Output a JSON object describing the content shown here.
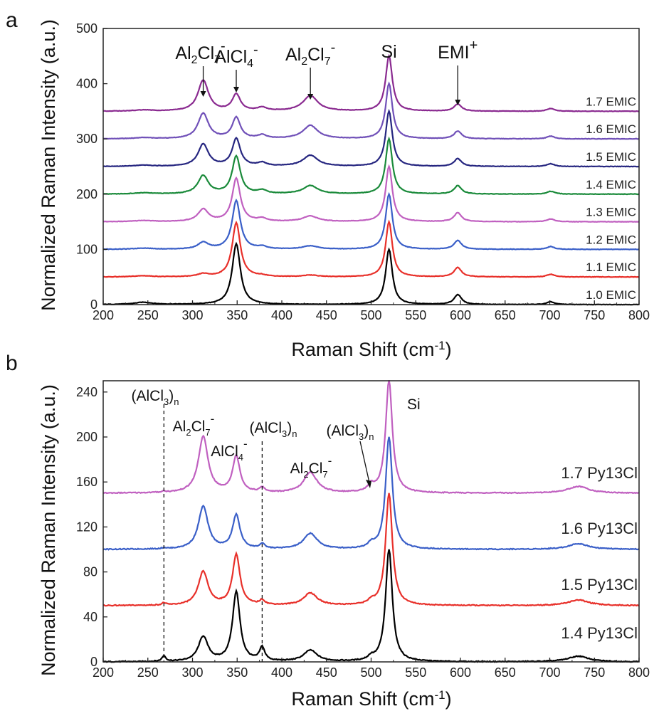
{
  "chart_data": [
    {
      "panel": "a",
      "type": "line",
      "xlabel": "Raman Shift (cm⁻¹)",
      "ylabel": "Normalized Raman Intensity (a.u.)",
      "xlim": [
        200,
        800
      ],
      "ylim": [
        0,
        500
      ],
      "xticks": [
        200,
        250,
        300,
        350,
        400,
        450,
        500,
        550,
        600,
        650,
        700,
        750,
        800
      ],
      "yticks": [
        0,
        100,
        200,
        300,
        400,
        500
      ],
      "peak_positions": [
        245,
        312,
        349,
        378,
        432,
        520,
        597,
        701
      ],
      "series": [
        {
          "name": "1.0 EMIC",
          "offset": 0,
          "color": "#000000",
          "peak_heights": [
            4,
            0,
            110,
            0,
            0,
            100,
            18,
            5
          ]
        },
        {
          "name": "1.1 EMIC",
          "offset": 50,
          "color": "#e8302a",
          "peak_heights": [
            2,
            5,
            98,
            2,
            3,
            100,
            17,
            5
          ]
        },
        {
          "name": "1.2 EMIC",
          "offset": 100,
          "color": "#3a5fc8",
          "peak_heights": [
            2,
            12,
            88,
            4,
            6,
            100,
            16,
            5
          ]
        },
        {
          "name": "1.3 EMIC",
          "offset": 150,
          "color": "#c060c0",
          "peak_heights": [
            2,
            22,
            78,
            5,
            10,
            100,
            16,
            5
          ]
        },
        {
          "name": "1.4 EMIC",
          "offset": 200,
          "color": "#1a8a3a",
          "peak_heights": [
            2,
            33,
            68,
            6,
            15,
            100,
            15,
            5
          ]
        },
        {
          "name": "1.5 EMIC",
          "offset": 250,
          "color": "#262680",
          "peak_heights": [
            2,
            40,
            50,
            6,
            20,
            100,
            14,
            5
          ]
        },
        {
          "name": "1.6 EMIC",
          "offset": 300,
          "color": "#7050b8",
          "peak_heights": [
            2,
            46,
            38,
            6,
            24,
            100,
            14,
            5
          ]
        },
        {
          "name": "1.7 EMIC",
          "offset": 350,
          "color": "#8a2a90",
          "peak_heights": [
            2,
            56,
            30,
            6,
            28,
            100,
            13,
            5
          ]
        }
      ],
      "annotations": [
        {
          "x": 312,
          "main": "Al",
          "sub1": "2",
          "mid": "Cl",
          "sub2": "7",
          "sup": "-"
        },
        {
          "x": 349,
          "main": "AlCl",
          "sub1": "4",
          "mid": "",
          "sub2": "",
          "sup": "-"
        },
        {
          "x": 432,
          "main": "Al",
          "sub1": "2",
          "mid": "Cl",
          "sub2": "7",
          "sup": "-"
        },
        {
          "x": 520,
          "main": "Si",
          "sub1": "",
          "mid": "",
          "sub2": "",
          "sup": ""
        },
        {
          "x": 597,
          "main": "EMI",
          "sub1": "",
          "mid": "",
          "sub2": "",
          "sup": "+"
        }
      ]
    },
    {
      "panel": "b",
      "type": "line",
      "xlabel": "Raman Shift (cm⁻¹)",
      "ylabel": "Normalized Raman Intensity (a.u.)",
      "xlim": [
        200,
        800
      ],
      "ylim": [
        0,
        250
      ],
      "xticks": [
        200,
        250,
        300,
        350,
        400,
        450,
        500,
        550,
        600,
        650,
        700,
        750,
        800
      ],
      "yticks": [
        0,
        40,
        80,
        120,
        160,
        200,
        240
      ],
      "peak_positions": [
        268,
        312,
        349,
        378,
        432,
        500,
        520,
        732
      ],
      "series": [
        {
          "name": "1.4 Py13Cl",
          "offset": 0,
          "color": "#000000",
          "peak_heights": [
            5,
            22,
            62,
            12,
            10,
            3,
            100,
            5
          ]
        },
        {
          "name": "1.5 Py13Cl",
          "offset": 50,
          "color": "#e8302a",
          "peak_heights": [
            2,
            30,
            45,
            4,
            11,
            3,
            100,
            5
          ]
        },
        {
          "name": "1.6 Py13Cl",
          "offset": 100,
          "color": "#3a5fc8",
          "peak_heights": [
            1,
            38,
            30,
            4,
            14,
            4,
            100,
            5
          ]
        },
        {
          "name": "1.7 Py13Cl",
          "offset": 150,
          "color": "#c060c0",
          "peak_heights": [
            1,
            50,
            32,
            4,
            18,
            6,
            100,
            6
          ]
        }
      ],
      "dashed_lines": [
        268,
        378
      ],
      "annotations": [
        {
          "id": "alcl3n-1",
          "main": "(AlCl",
          "sub1": "3",
          "mid": ")",
          "sub2": "n",
          "sup": ""
        },
        {
          "id": "al2cl7-1",
          "main": "Al",
          "sub1": "2",
          "mid": "Cl",
          "sub2": "7",
          "sup": "-"
        },
        {
          "id": "alcl4",
          "main": "AlCl",
          "sub1": "4",
          "mid": "",
          "sub2": "",
          "sup": "-"
        },
        {
          "id": "alcl3n-2",
          "main": "(AlCl",
          "sub1": "3",
          "mid": ")",
          "sub2": "n",
          "sup": ""
        },
        {
          "id": "al2cl7-2",
          "main": "Al",
          "sub1": "2",
          "mid": "Cl",
          "sub2": "7",
          "sup": "-"
        },
        {
          "id": "alcl3n-3",
          "main": "(AlCl",
          "sub1": "3",
          "mid": ")",
          "sub2": "n",
          "sup": ""
        },
        {
          "id": "si",
          "main": "Si",
          "sub1": "",
          "mid": "",
          "sub2": "",
          "sup": ""
        }
      ]
    }
  ],
  "panel_letters": {
    "a": "a",
    "b": "b"
  },
  "xlabel_text": {
    "main": "Raman Shift (cm",
    "sup": "-1",
    "end": ")"
  },
  "ylabel_text": "Normalized Raman Intensity (a.u.)"
}
